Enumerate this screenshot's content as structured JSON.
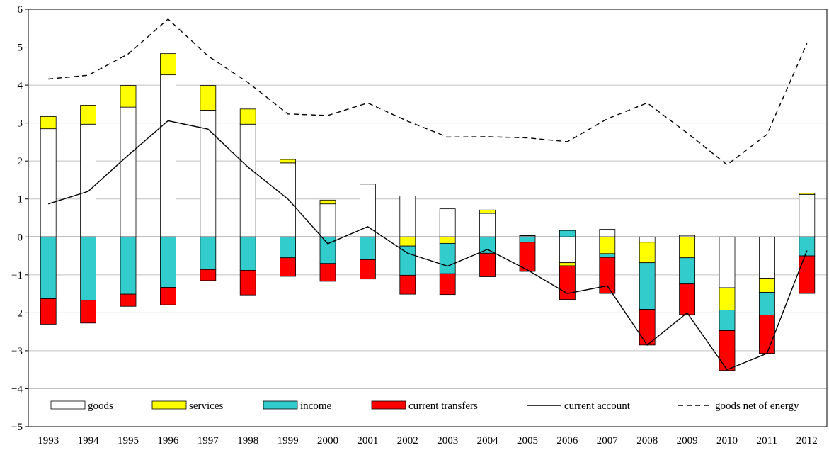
{
  "chart_data": {
    "type": "bar",
    "stacked": true,
    "categories": [
      "1993",
      "1994",
      "1995",
      "1996",
      "1997",
      "1998",
      "1999",
      "2000",
      "2001",
      "2002",
      "2003",
      "2004",
      "2005",
      "2006",
      "2007",
      "2008",
      "2009",
      "2010",
      "2011",
      "2012"
    ],
    "ylim": [
      -5,
      6
    ],
    "yticks": [
      "6",
      "5",
      "4",
      "3",
      "2",
      "1",
      "0",
      "−1",
      "−2",
      "−3",
      "−4",
      "−5"
    ],
    "grid": true,
    "legend_position": "bottom",
    "series": [
      {
        "name": "goods",
        "kind": "bar",
        "color": "#ffffff",
        "values": [
          2.85,
          2.97,
          3.42,
          4.27,
          3.34,
          2.97,
          1.95,
          0.87,
          1.39,
          1.08,
          0.74,
          0.62,
          0.03,
          -0.68,
          0.2,
          -0.14,
          0.04,
          -1.34,
          -1.09,
          1.12
        ]
      },
      {
        "name": "services",
        "kind": "bar",
        "color": "#ffff00",
        "values": [
          0.32,
          0.5,
          0.57,
          0.56,
          0.65,
          0.4,
          0.09,
          0.1,
          0.0,
          -0.24,
          -0.17,
          0.09,
          0.01,
          -0.08,
          -0.44,
          -0.54,
          -0.55,
          -0.59,
          -0.37,
          0.03
        ]
      },
      {
        "name": "income",
        "kind": "bar",
        "color": "#33cccc",
        "values": [
          -1.63,
          -1.67,
          -1.51,
          -1.33,
          -0.86,
          -0.88,
          -0.55,
          -0.7,
          -0.6,
          -0.77,
          -0.8,
          -0.43,
          -0.14,
          0.17,
          -0.1,
          -1.23,
          -0.69,
          -0.54,
          -0.6,
          -0.5
        ]
      },
      {
        "name": "current transfers",
        "kind": "bar",
        "color": "#ff0000",
        "values": [
          -0.67,
          -0.6,
          -0.32,
          -0.46,
          -0.29,
          -0.65,
          -0.49,
          -0.47,
          -0.51,
          -0.5,
          -0.55,
          -0.62,
          -0.77,
          -0.89,
          -0.95,
          -0.94,
          -0.81,
          -1.05,
          -1.01,
          -0.99
        ]
      },
      {
        "name": "current account",
        "kind": "line",
        "style": "solid",
        "color": "#000000",
        "values": [
          0.87,
          1.2,
          2.15,
          3.06,
          2.84,
          1.84,
          1.0,
          -0.18,
          0.27,
          -0.43,
          -0.77,
          -0.33,
          -0.87,
          -1.49,
          -1.29,
          -2.85,
          -2.0,
          -3.5,
          -3.07,
          -0.36
        ]
      },
      {
        "name": "goods net of energy",
        "kind": "line",
        "style": "dashed",
        "color": "#000000",
        "values": [
          4.16,
          4.26,
          4.82,
          5.74,
          4.77,
          4.07,
          3.24,
          3.2,
          3.53,
          3.05,
          2.63,
          2.64,
          2.61,
          2.51,
          3.11,
          3.53,
          2.74,
          1.9,
          2.7,
          5.1
        ]
      }
    ]
  }
}
